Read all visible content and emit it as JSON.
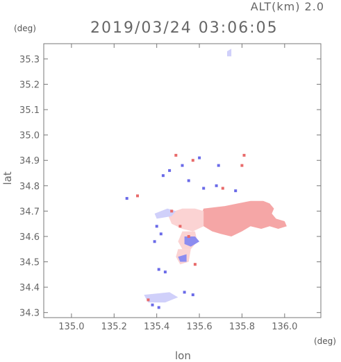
{
  "header": {
    "altitude_label": "ALT(km) 2.0",
    "datetime": "2019/03/24 03:06:05"
  },
  "chart_data": {
    "type": "heatmap",
    "title": "2019/03/24 03:06:05",
    "xlabel": "lon",
    "ylabel": "lat",
    "x_unit": "(deg)",
    "y_unit": "(deg)",
    "xlim": [
      134.87,
      136.17
    ],
    "ylim": [
      34.28,
      35.36
    ],
    "xticks": [
      135.0,
      135.2,
      135.4,
      135.6,
      135.8,
      136.0
    ],
    "xtick_labels": [
      "135.0",
      "135.2",
      "135.4",
      "135.6",
      "135.8",
      "136.0"
    ],
    "yticks": [
      34.3,
      34.4,
      34.5,
      34.6,
      34.7,
      34.8,
      34.9,
      35.0,
      35.1,
      35.2,
      35.3
    ],
    "ytick_labels": [
      "34.3",
      "34.4",
      "34.5",
      "34.6",
      "34.7",
      "34.8",
      "34.9",
      "35.0",
      "35.1",
      "35.2",
      "35.3"
    ],
    "grid": false,
    "colors": {
      "positive": "#f5a6a6",
      "positive_light": "#fbd3d3",
      "negative": "#8c8cf0",
      "negative_light": "#d0d0fa"
    },
    "regions": [
      {
        "kind": "positive",
        "shade": "main",
        "polygon": [
          [
            135.62,
            34.71
          ],
          [
            135.72,
            34.72
          ],
          [
            135.78,
            34.73
          ],
          [
            135.84,
            34.74
          ],
          [
            135.9,
            34.74
          ],
          [
            135.93,
            34.73
          ],
          [
            135.95,
            34.71
          ],
          [
            135.94,
            34.69
          ],
          [
            135.96,
            34.67
          ],
          [
            136.0,
            34.66
          ],
          [
            136.01,
            34.64
          ],
          [
            135.97,
            34.63
          ],
          [
            135.93,
            34.64
          ],
          [
            135.89,
            34.63
          ],
          [
            135.84,
            34.64
          ],
          [
            135.8,
            34.62
          ],
          [
            135.75,
            34.6
          ],
          [
            135.7,
            34.61
          ],
          [
            135.66,
            34.62
          ],
          [
            135.62,
            34.64
          ],
          [
            135.6,
            34.67
          ]
        ]
      },
      {
        "kind": "positive",
        "shade": "light",
        "polygon": [
          [
            135.45,
            34.69
          ],
          [
            135.52,
            34.71
          ],
          [
            135.58,
            34.71
          ],
          [
            135.62,
            34.7
          ],
          [
            135.62,
            34.64
          ],
          [
            135.57,
            34.62
          ],
          [
            135.52,
            34.63
          ],
          [
            135.47,
            34.65
          ]
        ]
      },
      {
        "kind": "positive",
        "shade": "light",
        "polygon": [
          [
            135.52,
            34.62
          ],
          [
            135.58,
            34.62
          ],
          [
            135.59,
            34.58
          ],
          [
            135.56,
            34.55
          ],
          [
            135.52,
            34.55
          ],
          [
            135.5,
            34.58
          ]
        ]
      },
      {
        "kind": "positive",
        "shade": "light",
        "polygon": [
          [
            135.5,
            34.55
          ],
          [
            135.56,
            34.55
          ],
          [
            135.55,
            34.5
          ],
          [
            135.51,
            34.49
          ],
          [
            135.49,
            34.52
          ]
        ]
      },
      {
        "kind": "negative",
        "shade": "light",
        "polygon": [
          [
            135.39,
            34.69
          ],
          [
            135.45,
            34.71
          ],
          [
            135.49,
            34.7
          ],
          [
            135.47,
            34.68
          ],
          [
            135.4,
            34.67
          ]
        ]
      },
      {
        "kind": "negative",
        "shade": "main",
        "polygon": [
          [
            135.53,
            34.6
          ],
          [
            135.58,
            34.6
          ],
          [
            135.6,
            34.58
          ],
          [
            135.56,
            34.56
          ],
          [
            135.53,
            34.57
          ]
        ]
      },
      {
        "kind": "negative",
        "shade": "main",
        "polygon": [
          [
            135.5,
            34.52
          ],
          [
            135.54,
            34.53
          ],
          [
            135.54,
            34.5
          ],
          [
            135.51,
            34.5
          ]
        ]
      },
      {
        "kind": "negative",
        "shade": "light",
        "polygon": [
          [
            135.34,
            34.37
          ],
          [
            135.46,
            34.38
          ],
          [
            135.5,
            34.36
          ],
          [
            135.44,
            34.34
          ],
          [
            135.36,
            34.34
          ]
        ]
      },
      {
        "kind": "negative",
        "shade": "light",
        "polygon": [
          [
            135.73,
            35.33
          ],
          [
            135.75,
            35.34
          ],
          [
            135.75,
            35.31
          ],
          [
            135.73,
            35.31
          ]
        ]
      }
    ],
    "points": [
      {
        "lon": 135.26,
        "lat": 34.75,
        "kind": "negative"
      },
      {
        "lon": 135.31,
        "lat": 34.76,
        "kind": "positive"
      },
      {
        "lon": 135.43,
        "lat": 34.84,
        "kind": "negative"
      },
      {
        "lon": 135.46,
        "lat": 34.86,
        "kind": "negative"
      },
      {
        "lon": 135.49,
        "lat": 34.92,
        "kind": "positive"
      },
      {
        "lon": 135.52,
        "lat": 34.88,
        "kind": "negative"
      },
      {
        "lon": 135.55,
        "lat": 34.82,
        "kind": "negative"
      },
      {
        "lon": 135.57,
        "lat": 34.9,
        "kind": "positive"
      },
      {
        "lon": 135.6,
        "lat": 34.91,
        "kind": "negative"
      },
      {
        "lon": 135.62,
        "lat": 34.79,
        "kind": "negative"
      },
      {
        "lon": 135.68,
        "lat": 34.8,
        "kind": "negative"
      },
      {
        "lon": 135.71,
        "lat": 34.79,
        "kind": "positive"
      },
      {
        "lon": 135.77,
        "lat": 34.78,
        "kind": "negative"
      },
      {
        "lon": 135.8,
        "lat": 34.88,
        "kind": "positive"
      },
      {
        "lon": 135.81,
        "lat": 34.92,
        "kind": "positive"
      },
      {
        "lon": 135.69,
        "lat": 34.88,
        "kind": "negative"
      },
      {
        "lon": 135.4,
        "lat": 34.64,
        "kind": "negative"
      },
      {
        "lon": 135.42,
        "lat": 34.61,
        "kind": "negative"
      },
      {
        "lon": 135.39,
        "lat": 34.58,
        "kind": "negative"
      },
      {
        "lon": 135.44,
        "lat": 34.46,
        "kind": "negative"
      },
      {
        "lon": 135.41,
        "lat": 34.47,
        "kind": "negative"
      },
      {
        "lon": 135.58,
        "lat": 34.49,
        "kind": "positive"
      },
      {
        "lon": 135.55,
        "lat": 34.6,
        "kind": "positive"
      },
      {
        "lon": 135.51,
        "lat": 34.64,
        "kind": "positive"
      },
      {
        "lon": 135.47,
        "lat": 34.7,
        "kind": "positive"
      },
      {
        "lon": 135.53,
        "lat": 34.38,
        "kind": "negative"
      },
      {
        "lon": 135.57,
        "lat": 34.37,
        "kind": "negative"
      },
      {
        "lon": 135.38,
        "lat": 34.33,
        "kind": "negative"
      },
      {
        "lon": 135.41,
        "lat": 34.32,
        "kind": "negative"
      },
      {
        "lon": 135.36,
        "lat": 34.35,
        "kind": "positive"
      }
    ]
  }
}
